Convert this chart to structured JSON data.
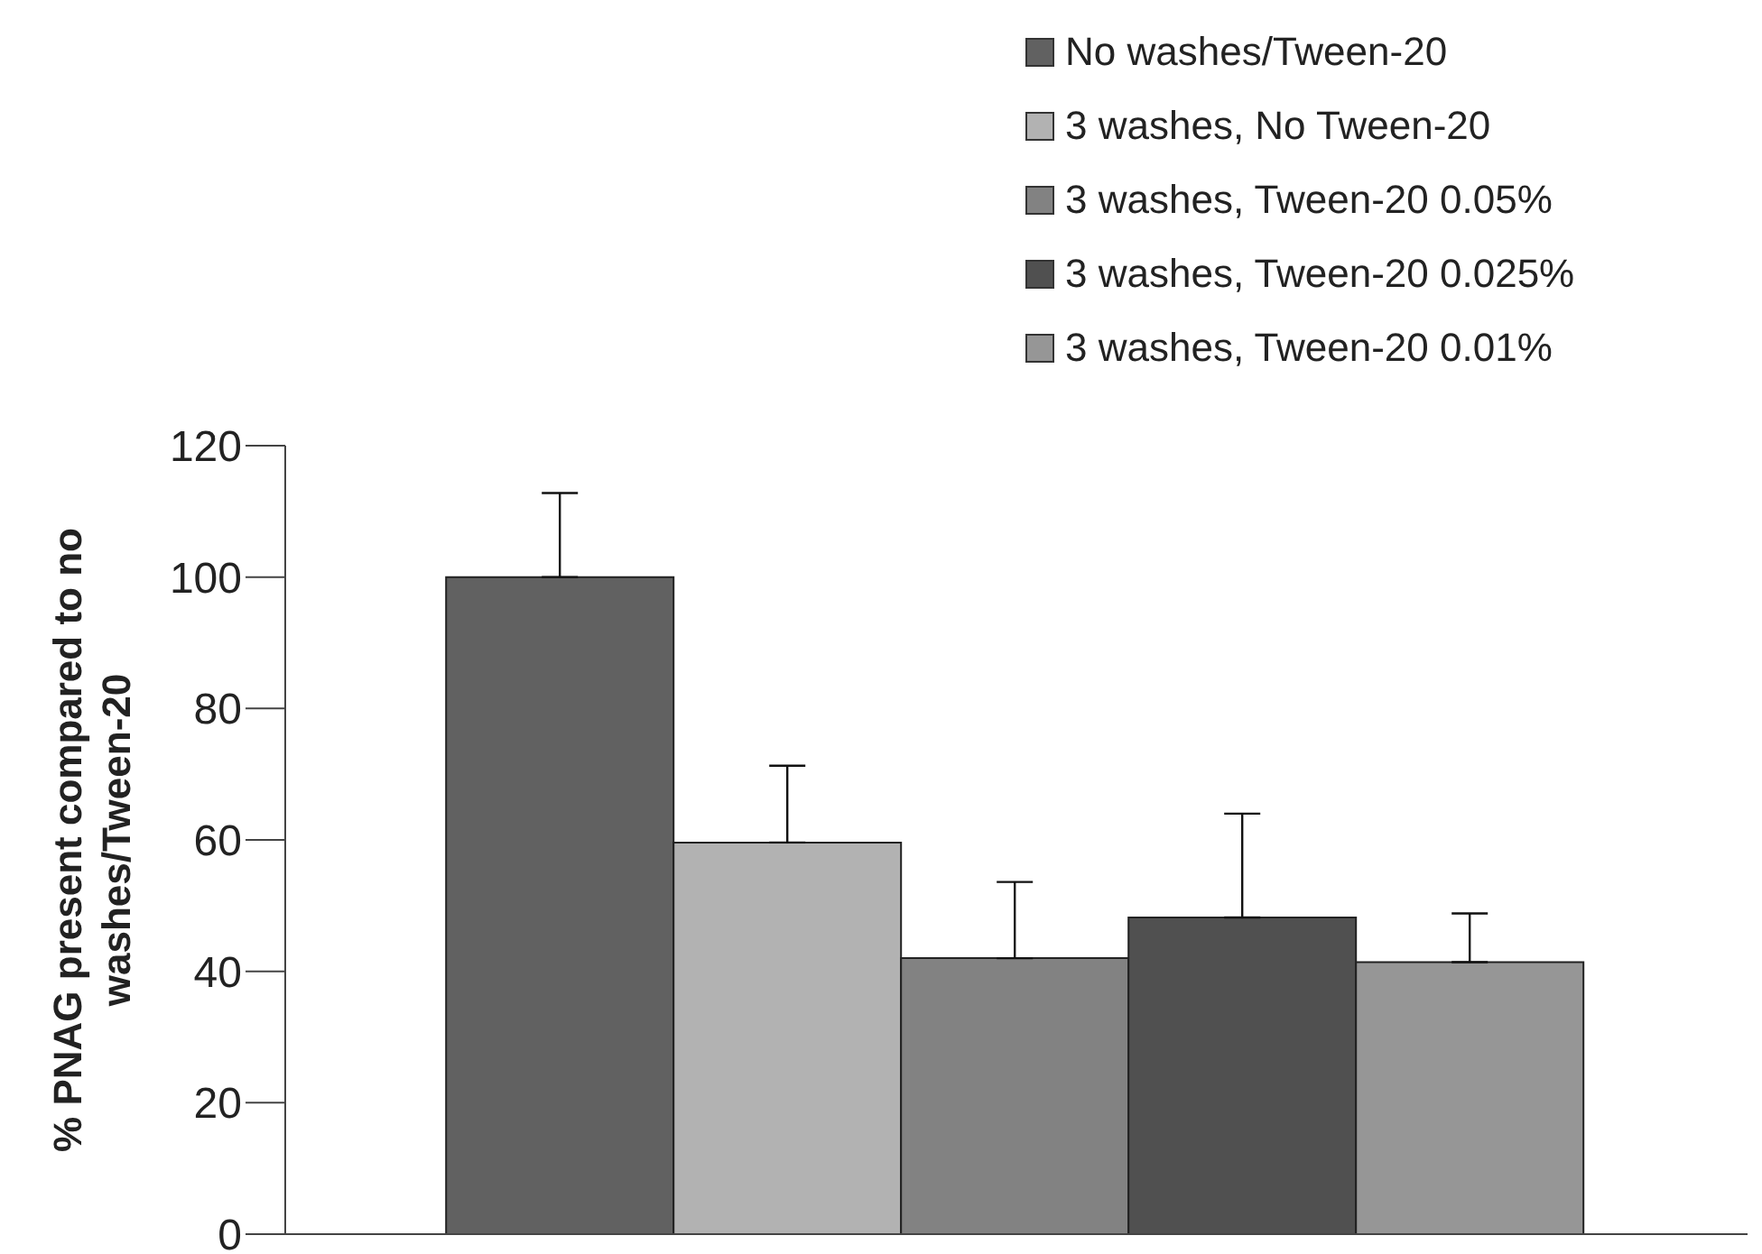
{
  "chart_data": {
    "type": "bar",
    "ylabel": "% PNAG present compared to no washes/Tween-20",
    "categories": [
      null
    ],
    "series": [
      {
        "name": "No washes/Tween-20",
        "color": "#616161",
        "values": [
          100
        ],
        "errors": [
          [
            100,
            112.8
          ]
        ]
      },
      {
        "name": "3 washes, No Tween-20",
        "color": "#b2b2b2",
        "values": [
          59.6
        ],
        "errors": [
          [
            59.6,
            71.3
          ]
        ]
      },
      {
        "name": "3 washes, Tween-20 0.05%",
        "color": "#828282",
        "values": [
          42
        ],
        "errors": [
          [
            42,
            53.6
          ]
        ]
      },
      {
        "name": "3 washes, Tween-20 0.025%",
        "color": "#505050",
        "values": [
          48.2
        ],
        "errors": [
          [
            48.2,
            64
          ]
        ]
      },
      {
        "name": "3 washes, Tween-20 0.01%",
        "color": "#969696",
        "values": [
          41.4
        ],
        "errors": [
          [
            41.4,
            48.8
          ]
        ]
      }
    ],
    "ylim": [
      0,
      120
    ],
    "yticks": [
      0,
      20,
      40,
      60,
      80,
      100,
      120
    ],
    "grid": false,
    "legend": "top right"
  }
}
